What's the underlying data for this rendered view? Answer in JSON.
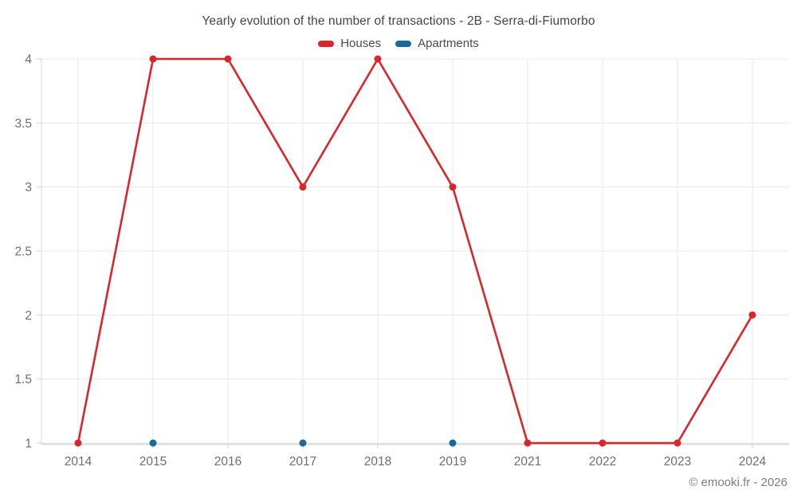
{
  "footer": {
    "credit": "© emooki.fr - 2026"
  },
  "chart_data": {
    "type": "line",
    "title": "Yearly evolution of the number of transactions - 2B - Serra-di-Fiumorbo",
    "categories": [
      "2014",
      "2015",
      "2016",
      "2017",
      "2018",
      "2019",
      "2021",
      "2022",
      "2023",
      "2024"
    ],
    "series": [
      {
        "name": "Houses",
        "color": "#da262b",
        "values": [
          1,
          4,
          4,
          3,
          4,
          3,
          1,
          1,
          1,
          2
        ]
      },
      {
        "name": "Apartments",
        "color": "#1769a0",
        "values": [
          null,
          1,
          null,
          1,
          null,
          1,
          null,
          null,
          null,
          null
        ]
      }
    ],
    "yticks": [
      1,
      1.5,
      2,
      2.5,
      3,
      3.5,
      4
    ],
    "ylim": [
      1,
      4
    ],
    "xlabel": "",
    "ylabel": "",
    "grid": true,
    "legend_position": "top"
  }
}
